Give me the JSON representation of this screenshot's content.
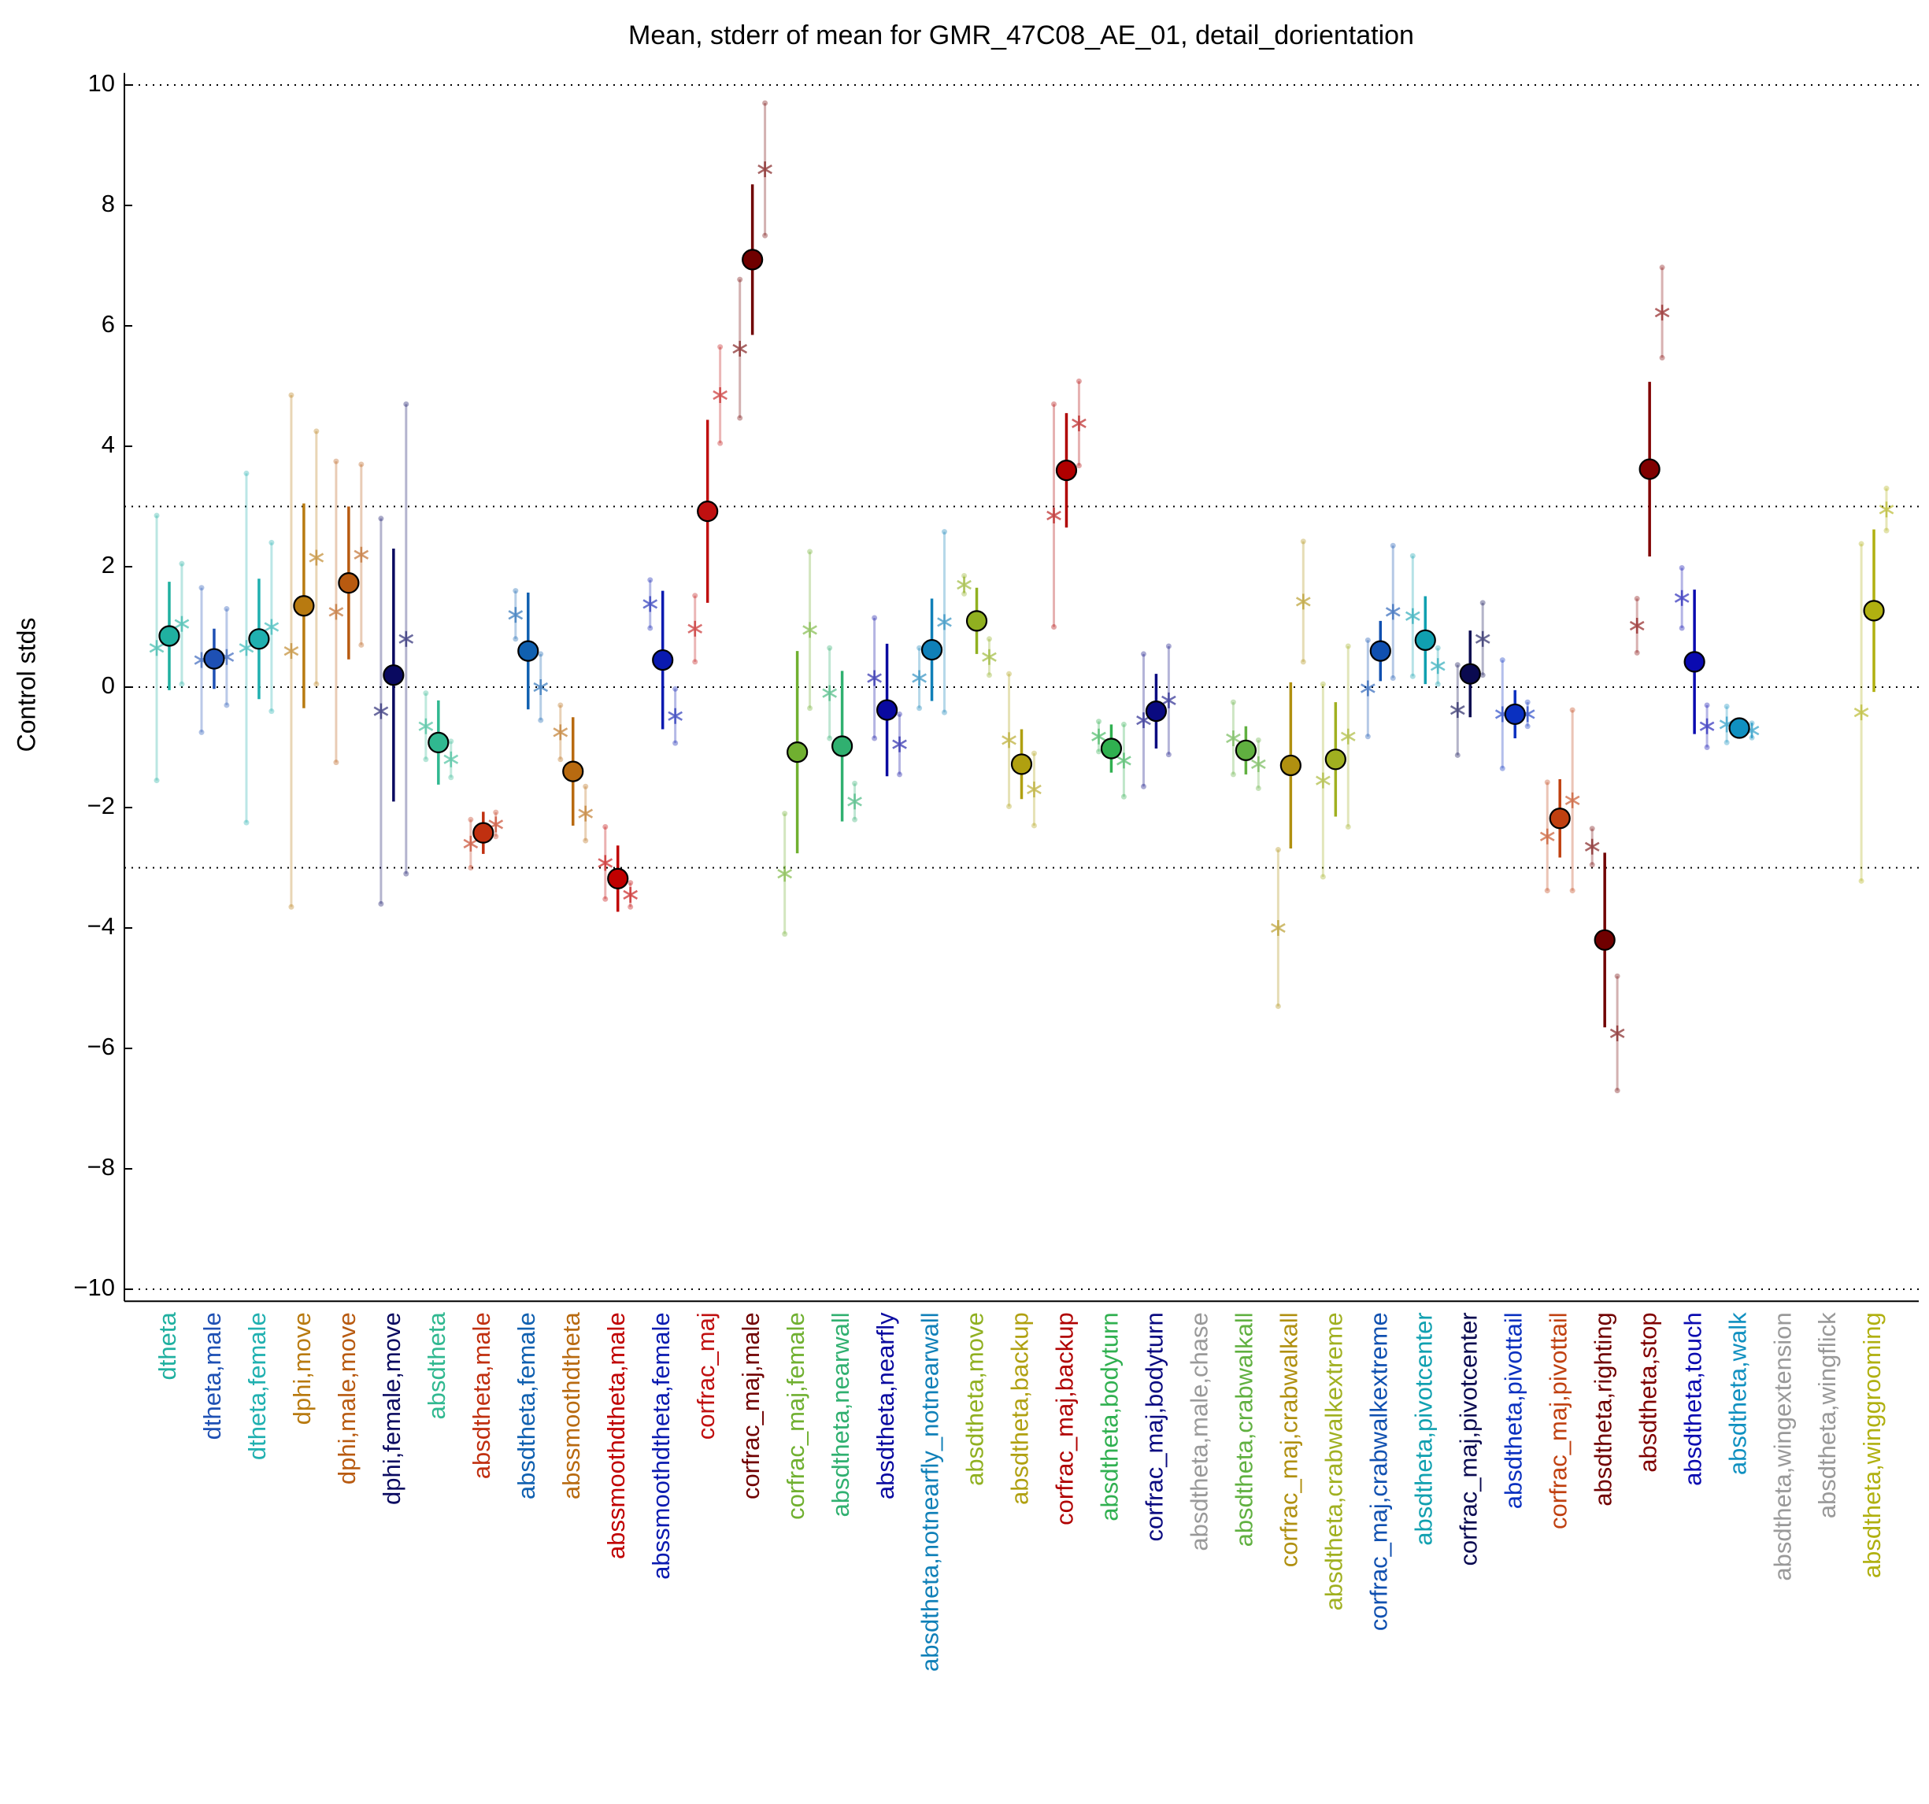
{
  "chart_data": {
    "type": "errorbar",
    "title": "Mean, stderr of mean for GMR_47C08_AE_01, detail_dorientation",
    "y_label": "Control stds",
    "categories": [
      "dtheta",
      "dtheta,male",
      "dtheta,female",
      "dphi,move",
      "dphi,male,move",
      "dphi,female,move",
      "absdtheta",
      "absdtheta,male",
      "absdtheta,female",
      "abssmoothdtheta",
      "abssmoothdtheta,male",
      "abssmoothdtheta,female",
      "corfrac_maj",
      "corfrac_maj,male",
      "corfrac_maj,female",
      "absdtheta,nearwall",
      "absdtheta,nearfly",
      "absdtheta,notnearfly_notnearwall",
      "absdtheta,move",
      "absdtheta,backup",
      "corfrac_maj,backup",
      "absdtheta,bodyturn",
      "corfrac_maj,bodyturn",
      "absdtheta,male,chase",
      "absdtheta,crabwalkall",
      "corfrac_maj,crabwalkall",
      "absdtheta,crabwalkextreme",
      "corfrac_maj,crabwalkextreme",
      "absdtheta,pivotcenter",
      "corfrac_maj,pivotcenter",
      "absdtheta,pivottail",
      "corfrac_maj,pivottail",
      "absdtheta,righting",
      "absdtheta,stop",
      "absdtheta,touch",
      "absdtheta,walk",
      "absdtheta,wingextension",
      "absdtheta,wingflick",
      "absdtheta,winggrooming"
    ],
    "colors": [
      "#20b0a0",
      "#1e50b4",
      "#20b0b0",
      "#b87a10",
      "#b85a10",
      "#0a0a60",
      "#30b890",
      "#c03010",
      "#1060b0",
      "#b86a10",
      "#c00000",
      "#0a1ab0",
      "#c01010",
      "#700000",
      "#70b030",
      "#30b070",
      "#0a0aa0",
      "#1080b8",
      "#90b020",
      "#b0a010",
      "#b00000",
      "#30b050",
      "#0a0a80",
      "#999999",
      "#60b040",
      "#b09010",
      "#a0b020",
      "#1050b0",
      "#10a0b0",
      "#0a0a50",
      "#0a30c0",
      "#c04010",
      "#700000",
      "#800000",
      "#0a0ab0",
      "#1090c0",
      "#999999",
      "#999999",
      "#b0b010"
    ],
    "means": [
      0.85,
      0.47,
      0.8,
      1.35,
      1.73,
      0.2,
      -0.92,
      -2.42,
      0.6,
      -1.4,
      -3.18,
      0.45,
      2.92,
      7.1,
      -1.08,
      -0.98,
      -0.38,
      0.62,
      1.1,
      -1.28,
      3.6,
      -1.02,
      -0.4,
      null,
      -1.05,
      -1.3,
      -1.2,
      0.6,
      0.78,
      0.22,
      -0.45,
      -2.18,
      -4.2,
      3.62,
      0.42,
      -0.68,
      null,
      null,
      1.27
    ],
    "errors": [
      0.9,
      0.5,
      1.0,
      1.7,
      1.27,
      2.1,
      0.7,
      0.35,
      0.97,
      0.9,
      0.55,
      1.15,
      1.52,
      1.25,
      1.68,
      1.25,
      1.1,
      0.85,
      0.55,
      0.58,
      0.95,
      0.4,
      0.62,
      null,
      0.4,
      1.38,
      0.95,
      0.5,
      0.73,
      0.72,
      0.4,
      0.65,
      1.45,
      1.45,
      1.2,
      0.12,
      null,
      null,
      1.35
    ],
    "male": [
      0.65,
      0.45,
      0.65,
      0.6,
      1.25,
      -0.4,
      -0.65,
      -2.6,
      1.2,
      -0.75,
      -2.92,
      1.38,
      0.97,
      5.62,
      -3.1,
      -0.1,
      0.15,
      0.15,
      1.7,
      -0.88,
      2.85,
      -0.82,
      -0.55,
      null,
      -0.85,
      -4.0,
      -1.55,
      -0.02,
      1.18,
      -0.38,
      -0.45,
      -2.48,
      -2.65,
      1.02,
      1.48,
      -0.62,
      null,
      null,
      -0.42
    ],
    "male_err": [
      2.2,
      1.2,
      2.9,
      4.25,
      2.5,
      3.2,
      0.55,
      0.4,
      0.4,
      0.45,
      0.6,
      0.4,
      0.55,
      1.15,
      1.0,
      0.75,
      1.0,
      0.5,
      0.15,
      1.1,
      1.85,
      0.25,
      1.1,
      null,
      0.6,
      1.3,
      1.6,
      0.8,
      1.0,
      0.75,
      0.9,
      0.9,
      0.3,
      0.45,
      0.5,
      0.3,
      null,
      null,
      2.8
    ],
    "female": [
      1.05,
      0.5,
      1.0,
      2.15,
      2.2,
      0.8,
      -1.2,
      -2.28,
      0.0,
      -2.1,
      -3.45,
      -0.48,
      4.85,
      8.6,
      0.95,
      -1.9,
      -0.95,
      1.08,
      0.5,
      -1.7,
      4.38,
      -1.22,
      -0.22,
      null,
      -1.28,
      1.42,
      -0.82,
      1.25,
      0.35,
      0.8,
      -0.45,
      -1.88,
      -5.75,
      6.22,
      -0.65,
      -0.72,
      null,
      null,
      2.95
    ],
    "female_err": [
      1.0,
      0.8,
      1.4,
      2.1,
      1.5,
      3.9,
      0.3,
      0.2,
      0.55,
      0.45,
      0.2,
      0.45,
      0.8,
      1.1,
      1.3,
      0.3,
      0.5,
      1.5,
      0.3,
      0.6,
      0.7,
      0.6,
      0.9,
      null,
      0.4,
      1.0,
      1.5,
      1.1,
      0.3,
      0.6,
      0.2,
      1.5,
      0.95,
      0.75,
      0.35,
      0.12,
      null,
      null,
      0.35
    ],
    "ylim": [
      -10.2,
      10.2
    ],
    "yticks": [
      {
        "value": -10,
        "label": "−10"
      },
      {
        "value": -8,
        "label": "−8"
      },
      {
        "value": -6,
        "label": "−6"
      },
      {
        "value": -4,
        "label": "−4"
      },
      {
        "value": -2,
        "label": "−2"
      },
      0,
      2,
      4,
      6,
      8,
      10
    ],
    "hlines": [
      -10,
      -3,
      0,
      3,
      10
    ]
  }
}
